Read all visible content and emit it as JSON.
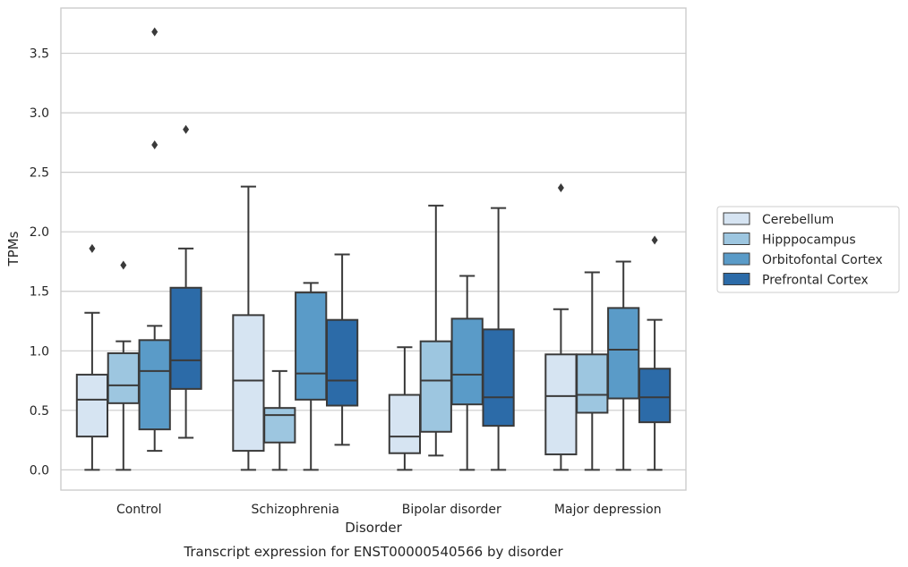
{
  "chart_data": {
    "type": "box",
    "caption": "Transcript expression for ENST00000540566 by disorder",
    "xlabel": "Disorder",
    "ylabel": "TPMs",
    "ylim": [
      -0.17,
      3.88
    ],
    "yticks": [
      0.0,
      0.5,
      1.0,
      1.5,
      2.0,
      2.5,
      3.0,
      3.5
    ],
    "ytick_labels": [
      "0.0",
      "0.5",
      "1.0",
      "1.5",
      "2.0",
      "2.5",
      "3.0",
      "3.5"
    ],
    "grid": "horizontal",
    "legend_position": "right",
    "categories": [
      "Control",
      "Schizophrenia",
      "Bipolar disorder",
      "Major depression"
    ],
    "series": [
      {
        "name": "Cerebellum",
        "color": "#d6e4f2",
        "boxes": [
          {
            "whislo": 0.0,
            "q1": 0.28,
            "med": 0.59,
            "q3": 0.8,
            "whishi": 1.32,
            "fliers": [
              1.86
            ]
          },
          {
            "whislo": 0.0,
            "q1": 0.16,
            "med": 0.75,
            "q3": 1.3,
            "whishi": 2.38,
            "fliers": []
          },
          {
            "whislo": 0.0,
            "q1": 0.14,
            "med": 0.28,
            "q3": 0.63,
            "whishi": 1.03,
            "fliers": []
          },
          {
            "whislo": 0.0,
            "q1": 0.13,
            "med": 0.62,
            "q3": 0.97,
            "whishi": 1.35,
            "fliers": [
              2.37
            ]
          }
        ]
      },
      {
        "name": "Hipppocampus",
        "color": "#9dc6e0",
        "boxes": [
          {
            "whislo": 0.0,
            "q1": 0.56,
            "med": 0.71,
            "q3": 0.98,
            "whishi": 1.08,
            "fliers": [
              1.72
            ]
          },
          {
            "whislo": 0.0,
            "q1": 0.23,
            "med": 0.46,
            "q3": 0.52,
            "whishi": 0.83,
            "fliers": []
          },
          {
            "whislo": 0.12,
            "q1": 0.32,
            "med": 0.75,
            "q3": 1.08,
            "whishi": 2.22,
            "fliers": []
          },
          {
            "whislo": 0.0,
            "q1": 0.48,
            "med": 0.63,
            "q3": 0.97,
            "whishi": 1.66,
            "fliers": []
          }
        ]
      },
      {
        "name": "Orbitofontal Cortex",
        "color": "#5a9bc8",
        "boxes": [
          {
            "whislo": 0.16,
            "q1": 0.34,
            "med": 0.83,
            "q3": 1.09,
            "whishi": 1.21,
            "fliers": [
              2.73,
              3.68
            ]
          },
          {
            "whislo": 0.0,
            "q1": 0.59,
            "med": 0.81,
            "q3": 1.49,
            "whishi": 1.57,
            "fliers": []
          },
          {
            "whislo": 0.0,
            "q1": 0.55,
            "med": 0.8,
            "q3": 1.27,
            "whishi": 1.63,
            "fliers": []
          },
          {
            "whislo": 0.0,
            "q1": 0.6,
            "med": 1.01,
            "q3": 1.36,
            "whishi": 1.75,
            "fliers": []
          }
        ]
      },
      {
        "name": "Prefrontal Cortex",
        "color": "#2c6ba8",
        "boxes": [
          {
            "whislo": 0.27,
            "q1": 0.68,
            "med": 0.92,
            "q3": 1.53,
            "whishi": 1.86,
            "fliers": [
              2.86
            ]
          },
          {
            "whislo": 0.21,
            "q1": 0.54,
            "med": 0.75,
            "q3": 1.26,
            "whishi": 1.81,
            "fliers": []
          },
          {
            "whislo": 0.0,
            "q1": 0.37,
            "med": 0.61,
            "q3": 1.18,
            "whishi": 2.2,
            "fliers": []
          },
          {
            "whislo": 0.0,
            "q1": 0.4,
            "med": 0.61,
            "q3": 0.85,
            "whishi": 1.26,
            "fliers": [
              1.93
            ]
          }
        ]
      }
    ]
  }
}
